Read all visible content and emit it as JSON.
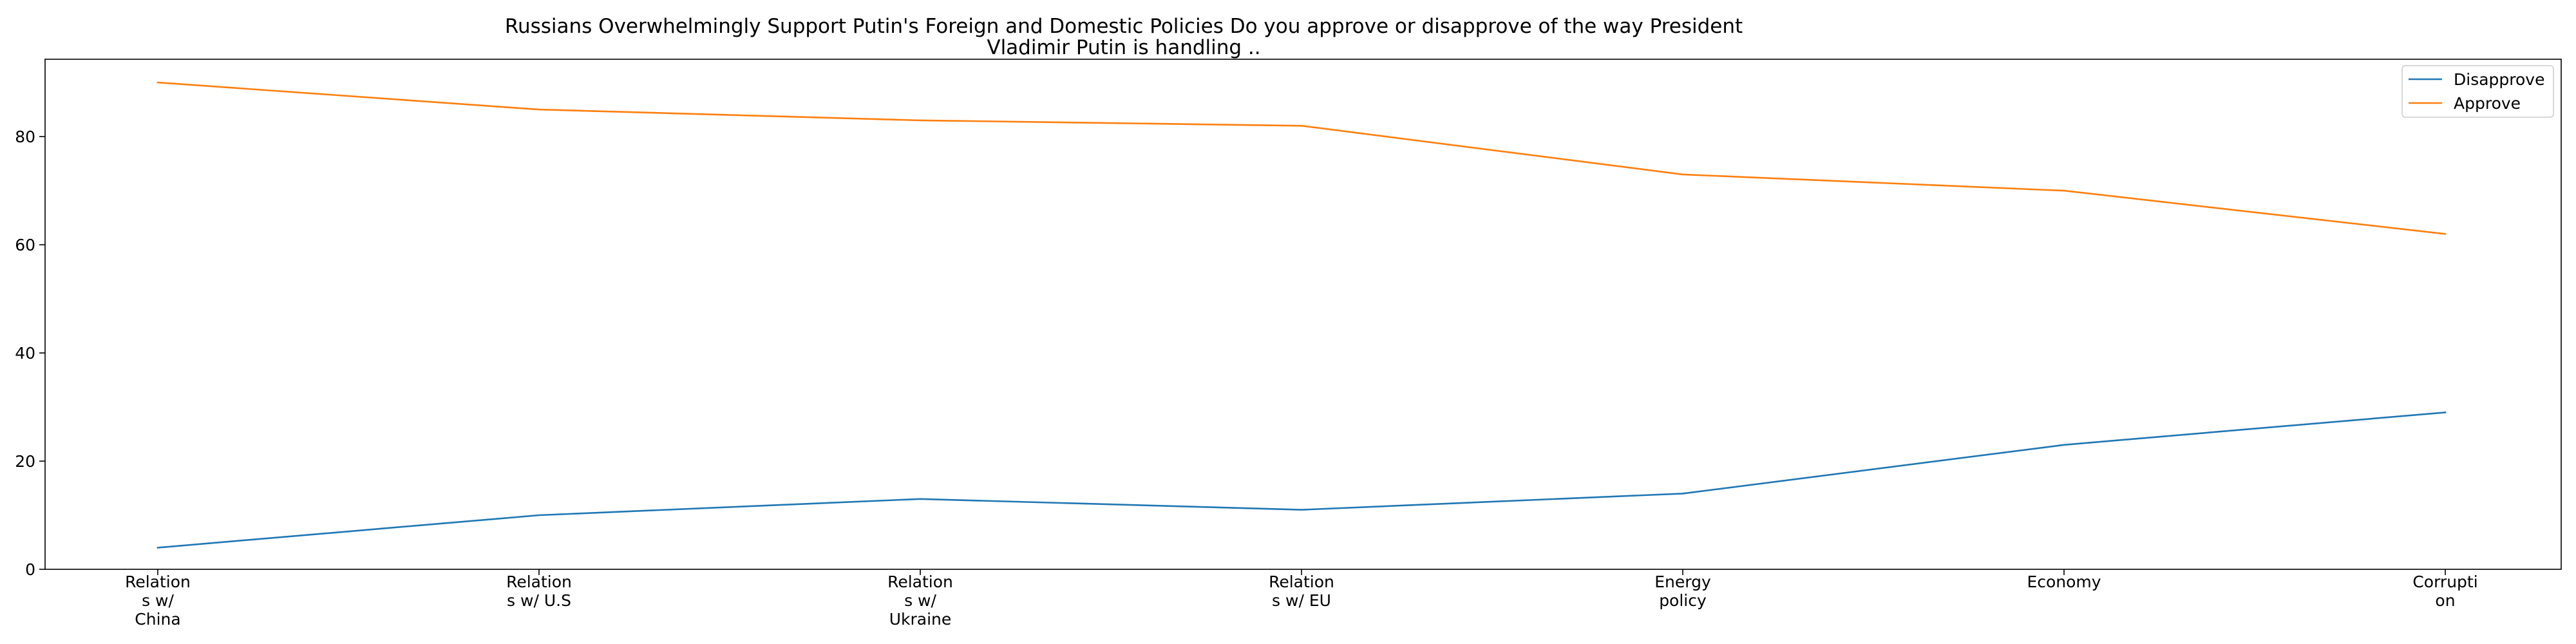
{
  "chart_data": {
    "type": "line",
    "title": "Russians Overwhelmingly Support Putin's Foreign and Domestic Policies Do you approve or disapprove of the way President Vladimir Putin is handling ..",
    "title_lines": [
      "Russians Overwhelmingly Support Putin's Foreign and Domestic Policies Do you approve or disapprove of the way President",
      "Vladimir Putin is handling .."
    ],
    "categories": [
      "Relations w/China",
      "Relations w/ U.S",
      "Relations w/ Ukraine",
      "Relations w/ EU",
      "Energy policy",
      "Economy",
      "Corruption"
    ],
    "category_label_lines": [
      [
        "Relation",
        "s w/",
        "China"
      ],
      [
        "Relation",
        "s w/ U.S"
      ],
      [
        "Relation",
        "s w/",
        "Ukraine"
      ],
      [
        "Relation",
        "s w/ EU"
      ],
      [
        "Energy",
        "policy"
      ],
      [
        "Economy"
      ],
      [
        "Corrupti",
        "on"
      ]
    ],
    "series": [
      {
        "name": "Disapprove",
        "color": "#1f77b4",
        "values": [
          4,
          10,
          13,
          11,
          14,
          23,
          29
        ]
      },
      {
        "name": "Approve",
        "color": "#ff7f0e",
        "values": [
          90,
          85,
          83,
          82,
          73,
          70,
          62
        ]
      }
    ],
    "ylim": [
      0,
      94.3
    ],
    "yticks": [
      0,
      20,
      40,
      60,
      80
    ],
    "ytick_labels": [
      "0",
      "20",
      "40",
      "60",
      "80"
    ],
    "xlabel": "",
    "ylabel": "",
    "grid": false,
    "legend_position": "top-right"
  }
}
